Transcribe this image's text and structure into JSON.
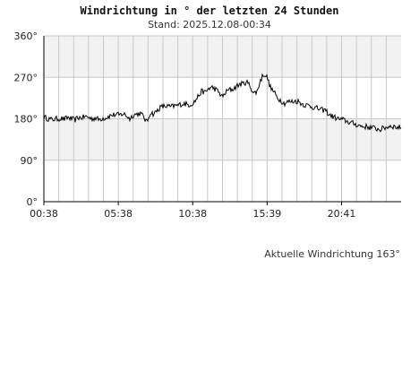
{
  "title": "Windrichtung in ° der letzten 24 Stunden",
  "subtitle": "Stand: 2025.12.08-00:34",
  "footer": "Aktuelle Windrichtung 163°",
  "chart_data": {
    "type": "line",
    "title": "Windrichtung in ° der letzten 24 Stunden",
    "xlabel": "",
    "ylabel": "",
    "ylim": [
      0,
      360
    ],
    "y_ticks": [
      0,
      90,
      180,
      270,
      360
    ],
    "y_tick_labels": [
      "0°",
      "90°",
      "180°",
      "270°",
      "360°"
    ],
    "x_tick_labels": [
      "00:38",
      "05:38",
      "10:38",
      "15:39",
      "20:41"
    ],
    "grid": true,
    "colors": {
      "line": "#000000",
      "band": "#f2f2f2",
      "grid": "#c8c8c8",
      "axis": "#000000"
    },
    "series": [
      {
        "values": [
          183,
          181,
          178,
          179,
          180,
          181,
          179,
          183,
          180,
          177,
          183,
          182,
          185,
          183,
          180,
          182,
          178,
          181,
          182,
          186,
          188,
          189,
          188,
          191,
          187,
          180,
          188,
          190,
          192,
          185,
          172,
          194,
          190,
          198,
          205,
          207,
          207,
          206,
          208,
          209,
          212,
          213,
          210,
          212,
          218,
          230,
          240,
          237,
          246,
          248,
          244,
          237,
          227,
          238,
          243,
          244,
          250,
          255,
          256,
          260,
          252,
          236,
          238,
          262,
          278,
          270,
          247,
          238,
          225,
          220,
          213,
          217,
          217,
          218,
          218,
          213,
          210,
          209,
          206,
          204,
          201,
          199,
          199,
          189,
          185,
          182,
          179,
          178,
          175,
          172,
          170,
          167,
          165,
          163,
          163,
          161,
          160,
          158,
          157,
          160,
          162,
          165,
          163,
          161,
          162
        ]
      }
    ]
  }
}
